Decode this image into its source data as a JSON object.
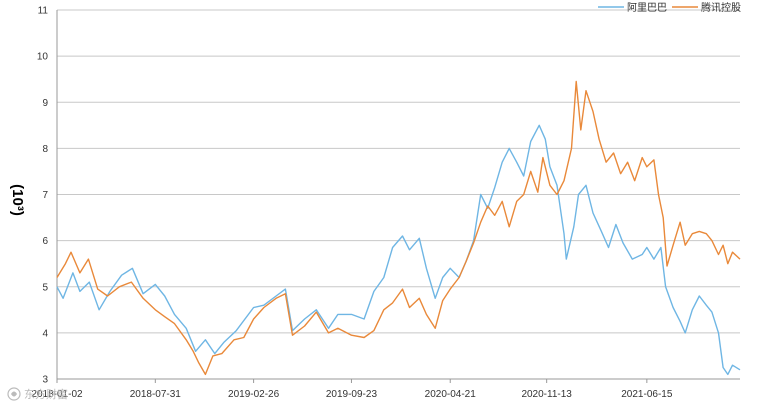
{
  "chart_data": {
    "type": "line",
    "title": "",
    "xlabel": "",
    "ylabel": "(10³)",
    "ylim": [
      3,
      11
    ],
    "yticks": [
      "3",
      "4",
      "5",
      "6",
      "7",
      "8",
      "9",
      "10",
      "11"
    ],
    "x_start": "2018-01-02",
    "x_end": "2021-12-31",
    "xticks": [
      "2018-01-02",
      "2018-07-31",
      "2019-02-26",
      "2019-09-23",
      "2020-04-21",
      "2020-11-13",
      "2021-06-15"
    ],
    "grid": "horizontal",
    "legend_position": "top-right",
    "series": [
      {
        "name": "阿里巴巴",
        "color": "#6fb6e4",
        "points": [
          [
            "2018-01-02",
            5.0
          ],
          [
            "2018-01-15",
            4.75
          ],
          [
            "2018-02-05",
            5.3
          ],
          [
            "2018-02-20",
            4.9
          ],
          [
            "2018-03-12",
            5.1
          ],
          [
            "2018-04-02",
            4.5
          ],
          [
            "2018-04-25",
            4.9
          ],
          [
            "2018-05-20",
            5.25
          ],
          [
            "2018-06-12",
            5.4
          ],
          [
            "2018-07-05",
            4.85
          ],
          [
            "2018-07-31",
            5.05
          ],
          [
            "2018-08-20",
            4.8
          ],
          [
            "2018-09-10",
            4.4
          ],
          [
            "2018-10-05",
            4.1
          ],
          [
            "2018-10-25",
            3.6
          ],
          [
            "2018-11-15",
            3.85
          ],
          [
            "2018-12-05",
            3.55
          ],
          [
            "2018-12-25",
            3.8
          ],
          [
            "2019-01-20",
            4.05
          ],
          [
            "2019-02-26",
            4.55
          ],
          [
            "2019-03-20",
            4.6
          ],
          [
            "2019-04-15",
            4.8
          ],
          [
            "2019-05-05",
            4.95
          ],
          [
            "2019-05-20",
            4.05
          ],
          [
            "2019-06-15",
            4.3
          ],
          [
            "2019-07-10",
            4.5
          ],
          [
            "2019-08-05",
            4.1
          ],
          [
            "2019-08-25",
            4.4
          ],
          [
            "2019-09-23",
            4.4
          ],
          [
            "2019-10-20",
            4.3
          ],
          [
            "2019-11-10",
            4.9
          ],
          [
            "2019-12-01",
            5.2
          ],
          [
            "2019-12-20",
            5.85
          ],
          [
            "2020-01-10",
            6.1
          ],
          [
            "2020-01-25",
            5.8
          ],
          [
            "2020-02-15",
            6.05
          ],
          [
            "2020-03-01",
            5.4
          ],
          [
            "2020-03-20",
            4.75
          ],
          [
            "2020-04-05",
            5.2
          ],
          [
            "2020-04-21",
            5.4
          ],
          [
            "2020-05-10",
            5.2
          ],
          [
            "2020-05-25",
            5.55
          ],
          [
            "2020-06-10",
            6.0
          ],
          [
            "2020-06-25",
            7.0
          ],
          [
            "2020-07-10",
            6.7
          ],
          [
            "2020-07-25",
            7.15
          ],
          [
            "2020-08-10",
            7.7
          ],
          [
            "2020-08-25",
            8.0
          ],
          [
            "2020-09-10",
            7.7
          ],
          [
            "2020-09-25",
            7.4
          ],
          [
            "2020-10-10",
            8.15
          ],
          [
            "2020-10-28",
            8.5
          ],
          [
            "2020-11-10",
            8.2
          ],
          [
            "2020-11-20",
            7.6
          ],
          [
            "2020-12-05",
            7.2
          ],
          [
            "2020-12-20",
            6.15
          ],
          [
            "2020-12-25",
            5.6
          ],
          [
            "2021-01-10",
            6.3
          ],
          [
            "2021-01-20",
            7.0
          ],
          [
            "2021-02-05",
            7.2
          ],
          [
            "2021-02-20",
            6.6
          ],
          [
            "2021-03-10",
            6.2
          ],
          [
            "2021-03-25",
            5.85
          ],
          [
            "2021-04-10",
            6.35
          ],
          [
            "2021-04-25",
            5.95
          ],
          [
            "2021-05-15",
            5.6
          ],
          [
            "2021-06-05",
            5.7
          ],
          [
            "2021-06-15",
            5.85
          ],
          [
            "2021-06-30",
            5.6
          ],
          [
            "2021-07-15",
            5.85
          ],
          [
            "2021-07-25",
            5.0
          ],
          [
            "2021-08-10",
            4.55
          ],
          [
            "2021-08-25",
            4.25
          ],
          [
            "2021-09-05",
            4.0
          ],
          [
            "2021-09-20",
            4.5
          ],
          [
            "2021-10-05",
            4.8
          ],
          [
            "2021-10-20",
            4.6
          ],
          [
            "2021-11-01",
            4.45
          ],
          [
            "2021-11-15",
            4.0
          ],
          [
            "2021-11-25",
            3.25
          ],
          [
            "2021-12-05",
            3.1
          ],
          [
            "2021-12-15",
            3.3
          ],
          [
            "2021-12-31",
            3.2
          ]
        ]
      },
      {
        "name": "腾讯控股",
        "color": "#e9893a",
        "points": [
          [
            "2018-01-02",
            5.2
          ],
          [
            "2018-01-20",
            5.5
          ],
          [
            "2018-02-01",
            5.75
          ],
          [
            "2018-02-20",
            5.3
          ],
          [
            "2018-03-10",
            5.6
          ],
          [
            "2018-03-30",
            4.95
          ],
          [
            "2018-04-20",
            4.8
          ],
          [
            "2018-05-15",
            5.0
          ],
          [
            "2018-06-10",
            5.1
          ],
          [
            "2018-07-05",
            4.75
          ],
          [
            "2018-07-31",
            4.5
          ],
          [
            "2018-08-20",
            4.35
          ],
          [
            "2018-09-10",
            4.2
          ],
          [
            "2018-10-05",
            3.85
          ],
          [
            "2018-10-20",
            3.6
          ],
          [
            "2018-11-01",
            3.35
          ],
          [
            "2018-11-15",
            3.1
          ],
          [
            "2018-12-01",
            3.5
          ],
          [
            "2018-12-20",
            3.55
          ],
          [
            "2019-01-15",
            3.85
          ],
          [
            "2019-02-05",
            3.9
          ],
          [
            "2019-02-26",
            4.3
          ],
          [
            "2019-03-20",
            4.55
          ],
          [
            "2019-04-15",
            4.75
          ],
          [
            "2019-05-05",
            4.85
          ],
          [
            "2019-05-20",
            3.95
          ],
          [
            "2019-06-15",
            4.15
          ],
          [
            "2019-07-10",
            4.45
          ],
          [
            "2019-08-05",
            4.0
          ],
          [
            "2019-08-25",
            4.1
          ],
          [
            "2019-09-23",
            3.95
          ],
          [
            "2019-10-20",
            3.9
          ],
          [
            "2019-11-10",
            4.05
          ],
          [
            "2019-12-01",
            4.5
          ],
          [
            "2019-12-20",
            4.65
          ],
          [
            "2020-01-10",
            4.95
          ],
          [
            "2020-01-25",
            4.55
          ],
          [
            "2020-02-15",
            4.75
          ],
          [
            "2020-03-01",
            4.4
          ],
          [
            "2020-03-20",
            4.1
          ],
          [
            "2020-04-05",
            4.7
          ],
          [
            "2020-04-21",
            4.95
          ],
          [
            "2020-05-10",
            5.2
          ],
          [
            "2020-05-25",
            5.55
          ],
          [
            "2020-06-10",
            5.95
          ],
          [
            "2020-06-25",
            6.4
          ],
          [
            "2020-07-10",
            6.75
          ],
          [
            "2020-07-25",
            6.55
          ],
          [
            "2020-08-10",
            6.85
          ],
          [
            "2020-08-25",
            6.3
          ],
          [
            "2020-09-10",
            6.85
          ],
          [
            "2020-09-25",
            7.0
          ],
          [
            "2020-10-10",
            7.5
          ],
          [
            "2020-10-25",
            7.05
          ],
          [
            "2020-11-05",
            7.8
          ],
          [
            "2020-11-20",
            7.2
          ],
          [
            "2020-12-05",
            7.0
          ],
          [
            "2020-12-20",
            7.3
          ],
          [
            "2021-01-05",
            8.0
          ],
          [
            "2021-01-15",
            9.45
          ],
          [
            "2021-01-25",
            8.4
          ],
          [
            "2021-02-05",
            9.25
          ],
          [
            "2021-02-20",
            8.8
          ],
          [
            "2021-03-05",
            8.2
          ],
          [
            "2021-03-20",
            7.7
          ],
          [
            "2021-04-05",
            7.9
          ],
          [
            "2021-04-20",
            7.45
          ],
          [
            "2021-05-05",
            7.7
          ],
          [
            "2021-05-20",
            7.3
          ],
          [
            "2021-06-05",
            7.8
          ],
          [
            "2021-06-15",
            7.6
          ],
          [
            "2021-06-30",
            7.75
          ],
          [
            "2021-07-10",
            7.0
          ],
          [
            "2021-07-20",
            6.5
          ],
          [
            "2021-07-28",
            5.45
          ],
          [
            "2021-08-10",
            5.9
          ],
          [
            "2021-08-25",
            6.4
          ],
          [
            "2021-09-05",
            5.9
          ],
          [
            "2021-09-20",
            6.15
          ],
          [
            "2021-10-05",
            6.2
          ],
          [
            "2021-10-20",
            6.15
          ],
          [
            "2021-11-01",
            6.0
          ],
          [
            "2021-11-15",
            5.7
          ],
          [
            "2021-11-25",
            5.9
          ],
          [
            "2021-12-05",
            5.5
          ],
          [
            "2021-12-15",
            5.75
          ],
          [
            "2021-12-31",
            5.6
          ]
        ]
      }
    ]
  },
  "watermark": "东方财富"
}
